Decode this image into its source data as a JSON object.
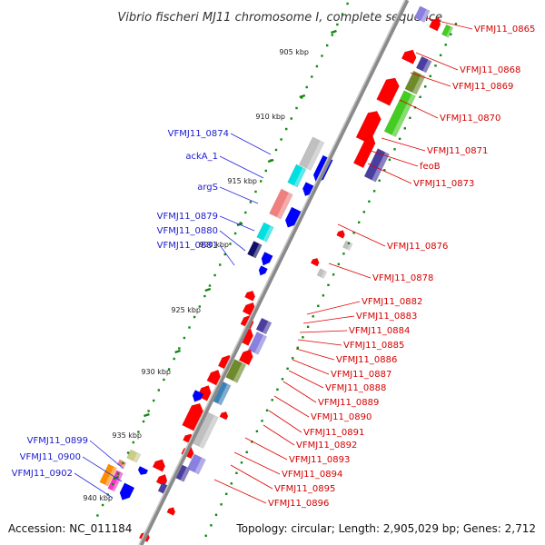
{
  "title": "Vibrio fischeri MJ11 chromosome I, complete sequence",
  "footer": {
    "accession": "Accession: NC_011184",
    "topology": "Topology: circular; Length: 2,905,029 bp; Genes: 2,712"
  },
  "colors": {
    "backbone": "#909090",
    "tick": "#118811",
    "forward_label": "#1a1ad0",
    "reverse_label": "#d40000",
    "gene_red": "#ff0000",
    "gene_blue": "#0000ff",
    "gene_purple": "#4a3ea0",
    "gene_green": "#44cc22",
    "gene_olive": "#6e8a2a",
    "gene_cyan": "#00e0e0",
    "gene_pink": "#f08080",
    "gene_gray": "#c0c0c0",
    "gene_lavender": "#8a80e0",
    "gene_steel": "#3b82b8",
    "gene_orange": "#ff8c00",
    "gene_magenta": "#ff33cc",
    "gene_khaki": "#cccc88",
    "gene_navy": "#10106a"
  },
  "ticks": [
    "905 kbp",
    "910 kbp",
    "915 kbp",
    "920 kbp",
    "925 kbp",
    "930 kbp",
    "935 kbp",
    "940 kbp"
  ],
  "left_labels": [
    "VFMJ11_0874",
    "ackA_1",
    "argS",
    "VFMJ11_0879",
    "VFMJ11_0880",
    "VFMJ11_0881",
    "VFMJ11_0899",
    "VFMJ11_0900",
    "VFMJ11_0902"
  ],
  "right_labels": [
    "VFMJ11_0865",
    "VFMJ11_0868",
    "VFMJ11_0869",
    "VFMJ11_0870",
    "VFMJ11_0871",
    "feoB",
    "VFMJ11_0873",
    "VFMJ11_0876",
    "VFMJ11_0878",
    "VFMJ11_0882",
    "VFMJ11_0883",
    "VFMJ11_0884",
    "VFMJ11_0885",
    "VFMJ11_0886",
    "VFMJ11_0887",
    "VFMJ11_0888",
    "VFMJ11_0889",
    "VFMJ11_0890",
    "VFMJ11_0891",
    "VFMJ11_0892",
    "VFMJ11_0893",
    "VFMJ11_0894",
    "VFMJ11_0895",
    "VFMJ11_0896"
  ]
}
